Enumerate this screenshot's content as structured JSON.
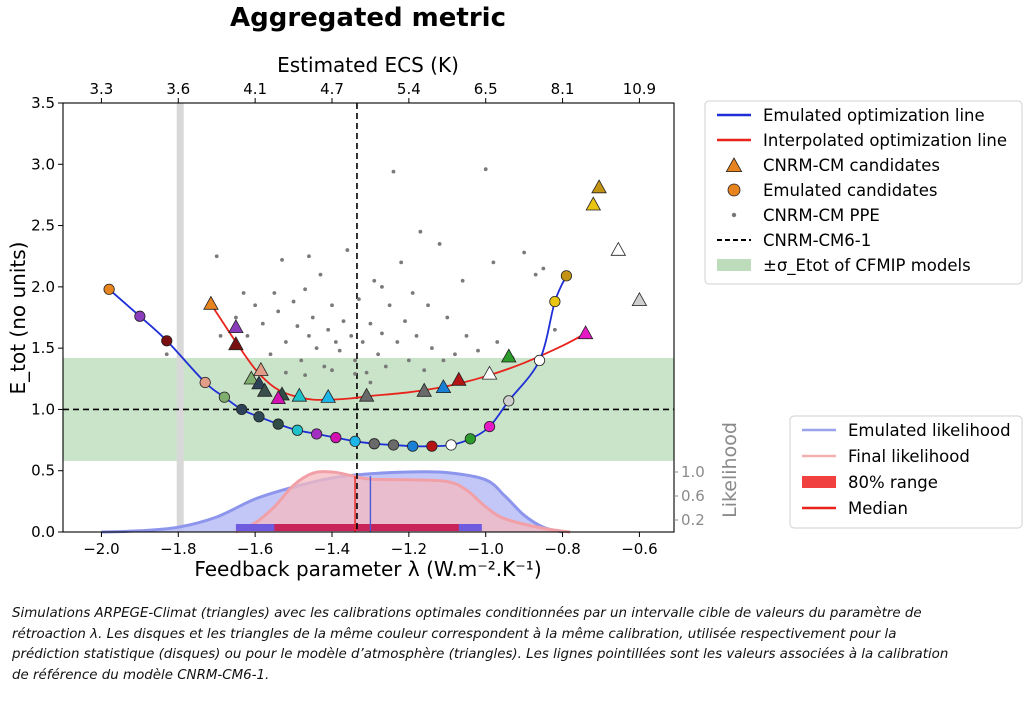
{
  "chart_data": {
    "type": "scatter",
    "title": "Aggregated metric",
    "xlabel": "Feedback parameter λ (W.m⁻².K⁻¹)",
    "ylabel": "E_tot (no units)",
    "x2label": "Estimated ECS (K)",
    "likelihood_label": "Likelihood",
    "xlim": [
      -2.1,
      -0.51
    ],
    "ylim": [
      0,
      3.5
    ],
    "xticks": [
      -2.0,
      -1.8,
      -1.6,
      -1.4,
      -1.2,
      -1.0,
      -0.8,
      -0.6
    ],
    "xtick_labels": [
      "−2.0",
      "−1.8",
      "−1.6",
      "−1.4",
      "−1.2",
      "−1.0",
      "−0.8",
      "−0.6"
    ],
    "yticks": [
      0.0,
      0.5,
      1.0,
      1.5,
      2.0,
      2.5,
      3.0,
      3.5
    ],
    "ytick_labels": [
      "0.0",
      "0.5",
      "1.0",
      "1.5",
      "2.0",
      "2.5",
      "3.0",
      "3.5"
    ],
    "ecs_ticks": [
      {
        "lambda": -2.0,
        "label": "3.3"
      },
      {
        "lambda": -1.8,
        "label": "3.6"
      },
      {
        "lambda": -1.6,
        "label": "4.1"
      },
      {
        "lambda": -1.4,
        "label": "4.7"
      },
      {
        "lambda": -1.2,
        "label": "5.4"
      },
      {
        "lambda": -1.0,
        "label": "6.5"
      },
      {
        "lambda": -0.8,
        "label": "8.1"
      },
      {
        "lambda": -0.6,
        "label": "10.9"
      }
    ],
    "likelihood_ticks": [
      {
        "value": 1.0,
        "label": "1.0"
      },
      {
        "value": 0.6,
        "label": "0.6"
      },
      {
        "value": 0.2,
        "label": "0.2"
      }
    ],
    "cnrm_cm6_1": {
      "lambda": -1.335,
      "etot": 1.0
    },
    "cfmip_band": [
      0.58,
      1.42
    ],
    "cfmip_ref_lambda": -1.795,
    "emulated_candidates": [
      {
        "x": -1.98,
        "y": 1.98,
        "color": "#e8841f"
      },
      {
        "x": -1.9,
        "y": 1.76,
        "color": "#8a3dbb"
      },
      {
        "x": -1.83,
        "y": 1.56,
        "color": "#7a0f12"
      },
      {
        "x": -1.73,
        "y": 1.22,
        "color": "#e39c87"
      },
      {
        "x": -1.68,
        "y": 1.1,
        "color": "#7fae6e"
      },
      {
        "x": -1.635,
        "y": 1.0,
        "color": "#2e4258"
      },
      {
        "x": -1.59,
        "y": 0.94,
        "color": "#2d4a54"
      },
      {
        "x": -1.54,
        "y": 0.88,
        "color": "#2f4c46"
      },
      {
        "x": -1.49,
        "y": 0.83,
        "color": "#1fc2c9"
      },
      {
        "x": -1.44,
        "y": 0.8,
        "color": "#a12fc2"
      },
      {
        "x": -1.39,
        "y": 0.77,
        "color": "#d313b1"
      },
      {
        "x": -1.34,
        "y": 0.74,
        "color": "#1cb6e8"
      },
      {
        "x": -1.29,
        "y": 0.72,
        "color": "#6a6a6a"
      },
      {
        "x": -1.24,
        "y": 0.71,
        "color": "#6a6a6a"
      },
      {
        "x": -1.19,
        "y": 0.7,
        "color": "#1a80d6"
      },
      {
        "x": -1.14,
        "y": 0.7,
        "color": "#b51414"
      },
      {
        "x": -1.09,
        "y": 0.71,
        "color": "#ffffff"
      },
      {
        "x": -1.04,
        "y": 0.76,
        "color": "#2c9c2c"
      },
      {
        "x": -0.99,
        "y": 0.86,
        "color": "#e51ac5"
      },
      {
        "x": -0.94,
        "y": 1.07,
        "color": "#cfcfcf"
      },
      {
        "x": -0.86,
        "y": 1.4,
        "color": "#ffffff"
      },
      {
        "x": -0.82,
        "y": 1.88,
        "color": "#e9c411"
      },
      {
        "x": -0.79,
        "y": 2.09,
        "color": "#c39413"
      }
    ],
    "cnrm_cm_candidates": [
      {
        "x": -1.715,
        "y": 1.86,
        "color": "#e8841f"
      },
      {
        "x": -1.65,
        "y": 1.67,
        "color": "#8a3dbb"
      },
      {
        "x": -1.65,
        "y": 1.53,
        "color": "#7a0f12"
      },
      {
        "x": -1.61,
        "y": 1.25,
        "color": "#7fae6e"
      },
      {
        "x": -1.59,
        "y": 1.21,
        "color": "#2e4258"
      },
      {
        "x": -1.575,
        "y": 1.15,
        "color": "#3a4f4a"
      },
      {
        "x": -1.53,
        "y": 1.12,
        "color": "#2f4c46"
      },
      {
        "x": -1.585,
        "y": 1.32,
        "color": "#e39c87"
      },
      {
        "x": -1.54,
        "y": 1.09,
        "color": "#d313b1"
      },
      {
        "x": -1.485,
        "y": 1.11,
        "color": "#1fc2c9"
      },
      {
        "x": -1.41,
        "y": 1.1,
        "color": "#1cb6e8"
      },
      {
        "x": -1.31,
        "y": 1.11,
        "color": "#6a6a6a"
      },
      {
        "x": -1.16,
        "y": 1.15,
        "color": "#6a6a6a"
      },
      {
        "x": -1.11,
        "y": 1.18,
        "color": "#1a80d6"
      },
      {
        "x": -1.07,
        "y": 1.24,
        "color": "#b51414"
      },
      {
        "x": -0.99,
        "y": 1.29,
        "color": "#ffffff"
      },
      {
        "x": -0.94,
        "y": 1.43,
        "color": "#2c9c2c"
      },
      {
        "x": -0.74,
        "y": 1.62,
        "color": "#e51ac5"
      },
      {
        "x": -0.72,
        "y": 2.67,
        "color": "#e9c411"
      },
      {
        "x": -0.705,
        "y": 2.81,
        "color": "#c39413"
      },
      {
        "x": -0.655,
        "y": 2.3,
        "color": "#ffffff"
      },
      {
        "x": -0.6,
        "y": 1.89,
        "color": "#cfcfcf"
      }
    ],
    "interpolated_line": [
      [
        -1.715,
        1.86
      ],
      [
        -1.65,
        1.55
      ],
      [
        -1.6,
        1.33
      ],
      [
        -1.55,
        1.18
      ],
      [
        -1.5,
        1.11
      ],
      [
        -1.45,
        1.08
      ],
      [
        -1.4,
        1.08
      ],
      [
        -1.35,
        1.09
      ],
      [
        -1.3,
        1.11
      ],
      [
        -1.2,
        1.14
      ],
      [
        -1.1,
        1.19
      ],
      [
        -1.0,
        1.27
      ],
      [
        -0.9,
        1.38
      ],
      [
        -0.8,
        1.52
      ],
      [
        -0.74,
        1.62
      ]
    ],
    "ppe_points": [
      [
        -1.7,
        2.25
      ],
      [
        -1.69,
        1.6
      ],
      [
        -1.65,
        1.75
      ],
      [
        -1.62,
        1.6
      ],
      [
        -1.6,
        1.85
      ],
      [
        -1.58,
        1.7
      ],
      [
        -1.56,
        1.45
      ],
      [
        -1.55,
        1.95
      ],
      [
        -1.54,
        1.8
      ],
      [
        -1.52,
        1.55
      ],
      [
        -1.5,
        1.88
      ],
      [
        -1.49,
        1.68
      ],
      [
        -1.48,
        1.4
      ],
      [
        -1.47,
        1.98
      ],
      [
        -1.46,
        1.6
      ],
      [
        -1.45,
        1.75
      ],
      [
        -1.44,
        1.5
      ],
      [
        -1.43,
        2.1
      ],
      [
        -1.42,
        1.35
      ],
      [
        -1.41,
        1.65
      ],
      [
        -1.4,
        1.85
      ],
      [
        -1.39,
        1.55
      ],
      [
        -1.38,
        1.48
      ],
      [
        -1.37,
        1.72
      ],
      [
        -1.36,
        2.3
      ],
      [
        -1.35,
        1.6
      ],
      [
        -1.34,
        1.4
      ],
      [
        -1.33,
        1.9
      ],
      [
        -1.32,
        1.55
      ],
      [
        -1.31,
        1.3
      ],
      [
        -1.3,
        1.7
      ],
      [
        -1.29,
        2.05
      ],
      [
        -1.28,
        1.45
      ],
      [
        -1.27,
        1.62
      ],
      [
        -1.26,
        1.35
      ],
      [
        -1.25,
        1.85
      ],
      [
        -1.24,
        2.94
      ],
      [
        -1.23,
        1.55
      ],
      [
        -1.22,
        2.2
      ],
      [
        -1.21,
        1.72
      ],
      [
        -1.2,
        1.4
      ],
      [
        -1.19,
        1.95
      ],
      [
        -1.18,
        1.6
      ],
      [
        -1.17,
        2.45
      ],
      [
        -1.15,
        1.85
      ],
      [
        -1.14,
        1.5
      ],
      [
        -1.12,
        2.35
      ],
      [
        -1.1,
        1.75
      ],
      [
        -1.08,
        1.45
      ],
      [
        -1.06,
        2.05
      ],
      [
        -1.05,
        1.6
      ],
      [
        -1.02,
        1.48
      ],
      [
        -1.0,
        2.96
      ],
      [
        -0.98,
        2.2
      ],
      [
        -0.97,
        1.55
      ],
      [
        -0.93,
        1.42
      ],
      [
        -0.9,
        2.28
      ],
      [
        -0.87,
        2.1
      ],
      [
        -0.85,
        2.15
      ],
      [
        -0.82,
        1.65
      ],
      [
        -1.83,
        1.45
      ],
      [
        -1.63,
        1.95
      ],
      [
        -1.52,
        1.3
      ],
      [
        -1.47,
        1.28
      ],
      [
        -1.4,
        1.32
      ],
      [
        -1.34,
        1.29
      ],
      [
        -1.3,
        1.22
      ],
      [
        -1.46,
        2.25
      ],
      [
        -1.53,
        2.22
      ],
      [
        -1.27,
        2.0
      ],
      [
        -1.16,
        1.32
      ],
      [
        -1.11,
        1.4
      ]
    ],
    "emulated_likelihood": [
      [
        -2.0,
        0.0
      ],
      [
        -1.9,
        0.02
      ],
      [
        -1.8,
        0.08
      ],
      [
        -1.7,
        0.25
      ],
      [
        -1.6,
        0.55
      ],
      [
        -1.5,
        0.75
      ],
      [
        -1.4,
        0.9
      ],
      [
        -1.3,
        0.97
      ],
      [
        -1.2,
        1.0
      ],
      [
        -1.1,
        0.99
      ],
      [
        -1.0,
        0.87
      ],
      [
        -0.95,
        0.6
      ],
      [
        -0.9,
        0.28
      ],
      [
        -0.85,
        0.08
      ],
      [
        -0.8,
        0.0
      ]
    ],
    "final_likelihood": [
      [
        -1.65,
        0.0
      ],
      [
        -1.6,
        0.15
      ],
      [
        -1.55,
        0.42
      ],
      [
        -1.5,
        0.78
      ],
      [
        -1.45,
        0.98
      ],
      [
        -1.4,
        1.0
      ],
      [
        -1.35,
        0.94
      ],
      [
        -1.3,
        0.88
      ],
      [
        -1.2,
        0.87
      ],
      [
        -1.1,
        0.84
      ],
      [
        -1.05,
        0.7
      ],
      [
        -1.0,
        0.42
      ],
      [
        -0.95,
        0.22
      ],
      [
        -0.85,
        0.06
      ],
      [
        -0.78,
        0.0
      ]
    ],
    "emulated_80_range": [
      -1.65,
      -1.01
    ],
    "final_80_range": [
      -1.55,
      -1.07
    ],
    "emulated_median": -1.3,
    "final_median": -1.34,
    "legend_main": [
      {
        "label": "Emulated optimization line",
        "kind": "line",
        "color": "#1f2fd6"
      },
      {
        "label": "Interpolated optimization line",
        "kind": "line",
        "color": "#e8241c"
      },
      {
        "label": "CNRM-CM candidates",
        "kind": "triangle",
        "color": "#e8841f"
      },
      {
        "label": "Emulated candidates",
        "kind": "circle",
        "color": "#e8841f"
      },
      {
        "label": "CNRM-CM PPE",
        "kind": "dot",
        "color": "#777777"
      },
      {
        "label": "CNRM-CM6-1",
        "kind": "dashed",
        "color": "#000000"
      },
      {
        "label": "±σ_Etot of CFMIP models",
        "kind": "patch",
        "color": "#bcdcbc"
      }
    ],
    "legend_likelihood": [
      {
        "label": "Emulated likelihood",
        "kind": "line",
        "color": "#9aa4ee"
      },
      {
        "label": "Final likelihood",
        "kind": "line",
        "color": "#f4b0b0"
      },
      {
        "label": "80% range",
        "kind": "patch",
        "color": "#f04040"
      },
      {
        "label": "Median",
        "kind": "line",
        "color": "#e8241c"
      }
    ],
    "colors": {
      "emulated_line": "#1f2fd6",
      "interpolated_line": "#e8241c",
      "band": "#c9e4c9",
      "emulated_fill": "#b9bdf6",
      "final_fill": "#f6b9c0"
    }
  },
  "caption": {
    "lines": [
      "Simulations ARPEGE-Climat (triangles) avec les calibrations optimales conditionnées par un intervalle cible de valeurs du paramètre de",
      "rétroaction λ. Les disques et les triangles de la même couleur correspondent à la même calibration, utilisée respectivement pour la",
      "prédiction statistique (disques) ou pour le modèle d’atmosphère (triangles). Les lignes pointillées sont les valeurs associées à la calibration",
      "de référence du modèle CNRM-CM6-1."
    ]
  }
}
